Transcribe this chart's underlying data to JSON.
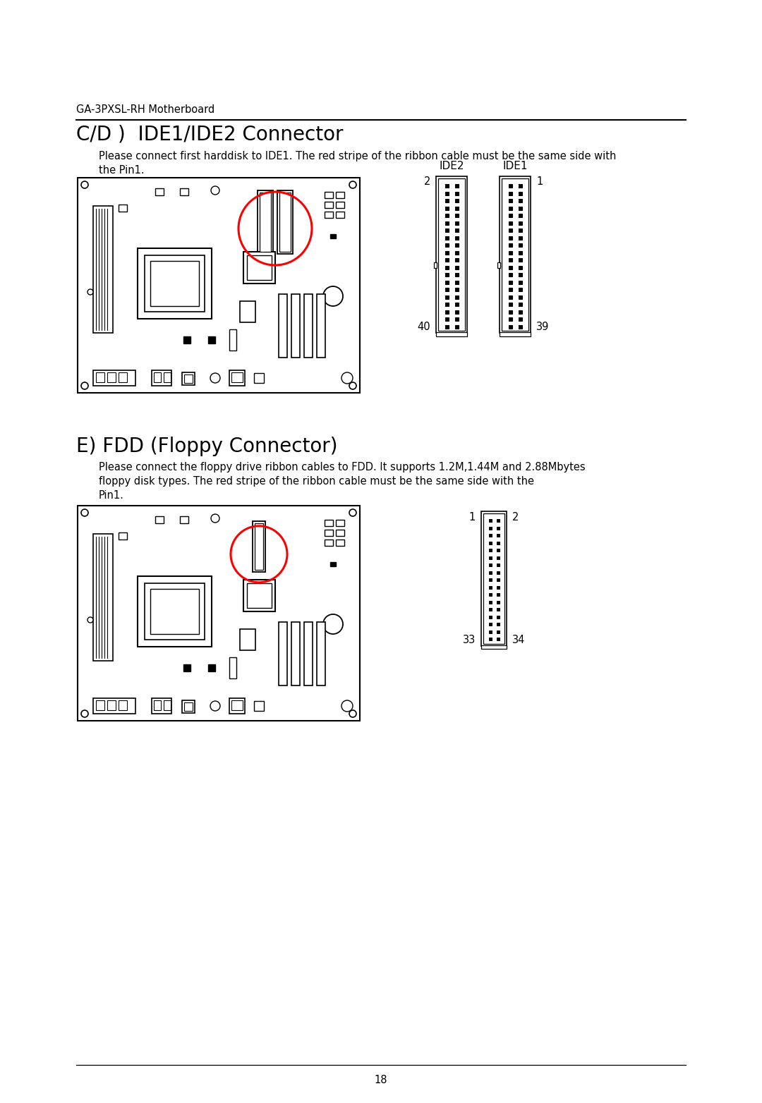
{
  "bg_color": "#ffffff",
  "header_text": "GA-3PXSL-RH Motherboard",
  "section1_title": "C/D )  IDE1/IDE2 Connector",
  "section1_body1": "Please connect first harddisk to IDE1. The red stripe of the ribbon cable must be the same side with",
  "section1_body2": "the Pin1.",
  "ide_label_left": "IDE2",
  "ide_label_right": "IDE1",
  "ide_pin_top_left": "2",
  "ide_pin_top_right": "1",
  "ide_pin_bot_left": "40",
  "ide_pin_bot_right": "39",
  "ide_rows": 20,
  "section2_title": "E) FDD (Floppy Connector)",
  "section2_body1": "Please connect the floppy drive ribbon cables to FDD. It supports 1.2M,1.44M and 2.88Mbytes",
  "section2_body2": "floppy disk types. The red stripe of the ribbon cable must be the same side with the",
  "section2_body3": "Pin1.",
  "fdd_pin_top_left": "1",
  "fdd_pin_top_right": "2",
  "fdd_pin_bot_left": "33",
  "fdd_pin_bot_right": "34",
  "fdd_rows": 17,
  "footer_text": "18"
}
